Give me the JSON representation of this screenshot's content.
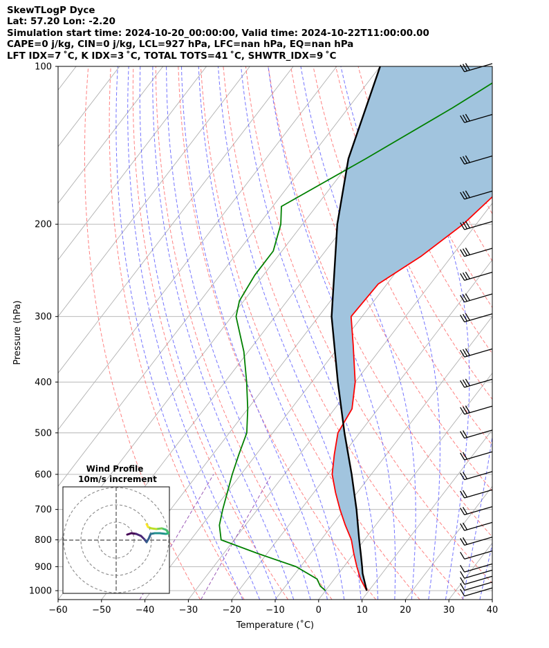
{
  "header": {
    "line1": "SkewTLogP Dyce",
    "line2": "Lat: 57.20   Lon: -2.20",
    "line3": "Simulation start time: 2024-10-20_00:00:00, Valid time: 2024-10-22T11:00:00.00",
    "line4": "CAPE=0 j/kg, CIN=0 j/kg, LCL=927 hPa, LFC=nan hPa, EQ=nan hPa",
    "line5": "LFT IDX=7 ˚C, K IDX=3 ˚C, TOTAL TOTS=41 ˚C, SHWTR_IDX=9 ˚C"
  },
  "chart_data": {
    "type": "line",
    "subtype": "skew-T log-P diagram",
    "xlabel": "Temperature (˚C)",
    "ylabel": "Pressure (hPa)",
    "xlim": [
      -60,
      40
    ],
    "ylim": [
      1040,
      100
    ],
    "y_scale": "log",
    "x_ticks": [
      "−60",
      "−50",
      "−40",
      "−30",
      "−20",
      "−10",
      "0",
      "10",
      "20",
      "30",
      "40"
    ],
    "y_ticks": [
      "1000",
      "900",
      "800",
      "700",
      "600",
      "500",
      "400",
      "300",
      "200",
      "100"
    ],
    "grid": true,
    "series": [
      {
        "role": "temperature",
        "color": "#ff0000",
        "points": [
          [
            100,
            -28
          ],
          [
            130,
            -27
          ],
          [
            160,
            -29.5
          ],
          [
            200,
            -33
          ],
          [
            230,
            -37
          ],
          [
            260,
            -42
          ],
          [
            300,
            -42.5
          ],
          [
            340,
            -37
          ],
          [
            400,
            -30
          ],
          [
            450,
            -26
          ],
          [
            500,
            -25
          ],
          [
            550,
            -22
          ],
          [
            600,
            -19
          ],
          [
            650,
            -15
          ],
          [
            700,
            -11
          ],
          [
            750,
            -7
          ],
          [
            800,
            -3
          ],
          [
            850,
            0
          ],
          [
            900,
            3
          ],
          [
            950,
            6
          ],
          [
            1000,
            9.5
          ]
        ]
      },
      {
        "role": "dewpoint",
        "color": "#008000",
        "points": [
          [
            100,
            -48
          ],
          [
            120,
            -56
          ],
          [
            150,
            -67
          ],
          [
            185,
            -78
          ],
          [
            200,
            -75
          ],
          [
            225,
            -72
          ],
          [
            250,
            -72
          ],
          [
            280,
            -71
          ],
          [
            300,
            -69
          ],
          [
            350,
            -61
          ],
          [
            400,
            -55
          ],
          [
            450,
            -50
          ],
          [
            500,
            -46
          ],
          [
            550,
            -44
          ],
          [
            600,
            -42
          ],
          [
            700,
            -38
          ],
          [
            750,
            -36
          ],
          [
            800,
            -33
          ],
          [
            850,
            -22
          ],
          [
            900,
            -11
          ],
          [
            950,
            -4
          ],
          [
            980,
            -2
          ],
          [
            1000,
            0
          ]
        ]
      },
      {
        "role": "parcel",
        "color": "#000000",
        "points": [
          [
            1000,
            9.5
          ],
          [
            927,
            5.5
          ],
          [
            900,
            4.2
          ],
          [
            850,
            1.6
          ],
          [
            800,
            -1.2
          ],
          [
            700,
            -7.2
          ],
          [
            600,
            -14.5
          ],
          [
            500,
            -23.5
          ],
          [
            400,
            -34
          ],
          [
            300,
            -47
          ],
          [
            200,
            -62
          ],
          [
            150,
            -71
          ],
          [
            100,
            -80
          ]
        ]
      }
    ],
    "shaded_region": {
      "between": [
        "temperature",
        "parcel"
      ],
      "color": "#a1c4de"
    },
    "reference_lines": {
      "dry_adiabats_color": "#ff6b6b",
      "moist_adiabats_color": "#5a5aff",
      "mixing_ratio_color": "#9b59b6",
      "isotherm_color": "#b0b0b0"
    },
    "wind_barbs": {
      "color": "#000000",
      "pressures": [
        100,
        125,
        150,
        175,
        200,
        225,
        250,
        275,
        300,
        350,
        400,
        450,
        500,
        550,
        600,
        650,
        700,
        750,
        800,
        850,
        900,
        925,
        950,
        975,
        1000
      ]
    },
    "inset": {
      "title": "Wind Profile",
      "subtitle": "10m/s increment",
      "rings": 3
    }
  }
}
